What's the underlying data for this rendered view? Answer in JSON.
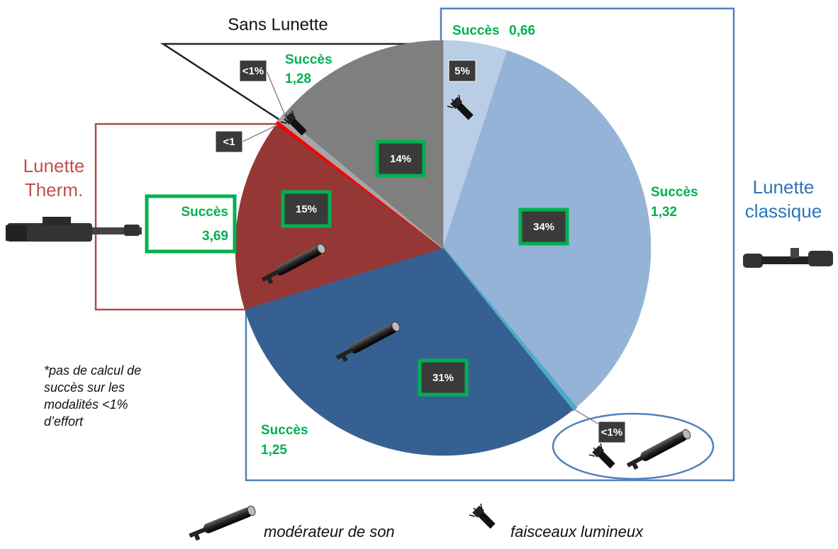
{
  "chart_data": {
    "type": "pie",
    "values": [
      5,
      34,
      0.3,
      31,
      15,
      0.3,
      0.5,
      14
    ],
    "value_labels": [
      "5%",
      "34%",
      "<1%",
      "31%",
      "15%",
      "<1",
      "<1%",
      "14%"
    ],
    "colors": [
      "#b9cde5",
      "#95b3d7",
      "#4bacc6",
      "#376092",
      "#953735",
      "#ff0000",
      "#a6a6a6",
      "#7f7f7f"
    ],
    "groups": [
      [
        "Sans Lunette"
      ],
      [
        "Lunette",
        "Therm."
      ],
      [
        "Lunette",
        "classique"
      ]
    ],
    "success": [
      {
        "label": "Succès",
        "value": "0,66"
      },
      {
        "label": "Succès",
        "value": "1,28"
      },
      {
        "label": "Succès",
        "value": "1,32"
      },
      {
        "label": "Succès",
        "value": "3,69"
      },
      {
        "label": "Succès",
        "value": "1,25"
      }
    ],
    "footnote": [
      "*pas de calcul de",
      "succès sur les",
      "modalités <1%",
      "d’effort"
    ],
    "legend": [
      "modérateur de son",
      "faisceaux lumineux"
    ]
  }
}
